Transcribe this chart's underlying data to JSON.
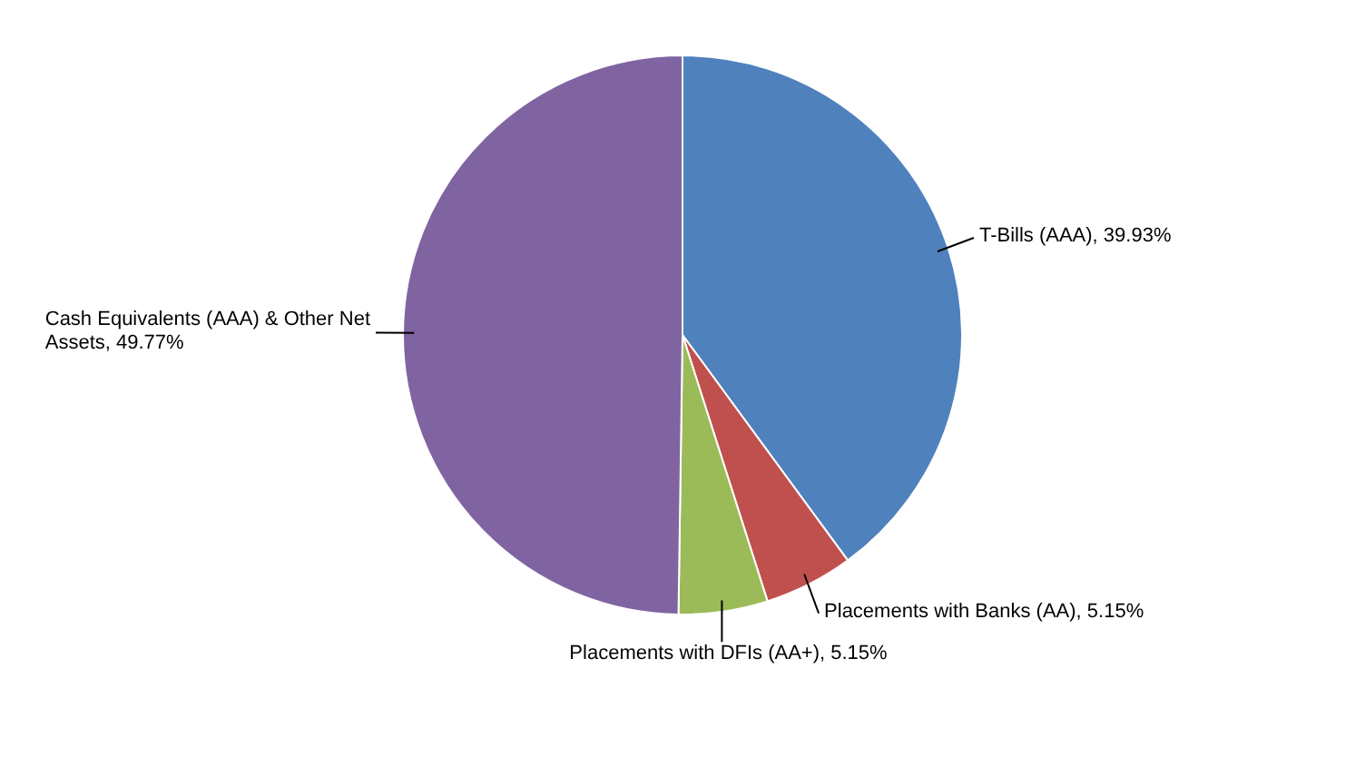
{
  "chart_data": {
    "type": "pie",
    "categories": [
      "T-Bills (AAA)",
      "Placements with Banks (AA)",
      "Placements with DFIs (AA+)",
      "Cash Equivalents (AAA) & Other Net Assets"
    ],
    "values": [
      39.93,
      5.15,
      5.15,
      49.77
    ],
    "value_labels": [
      "39.93%",
      "5.15%",
      "5.15%",
      "49.77%"
    ],
    "colors": [
      "#4f81bd",
      "#c0504d",
      "#9bbb59",
      "#8064a2"
    ],
    "legend": false
  }
}
